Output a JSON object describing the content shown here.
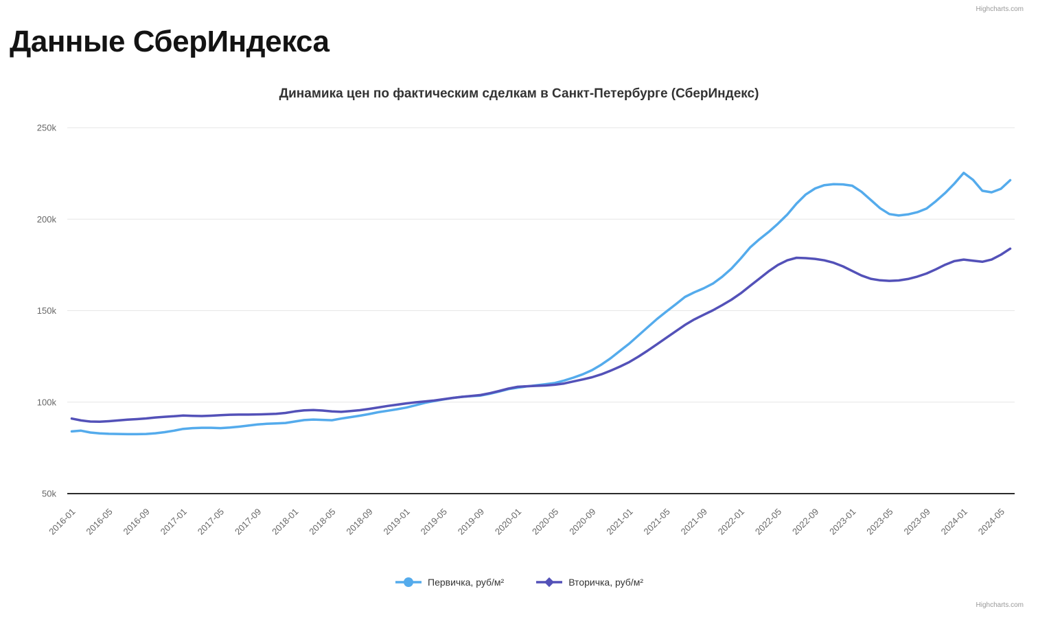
{
  "page": {
    "title": "Данные СберИндекса"
  },
  "credits": {
    "top": "Highcharts.com",
    "bottom": "Highcharts.com"
  },
  "chart_data": {
    "type": "line",
    "title": "Динамика цен по фактическим сделкам в Санкт-Петербурге (СберИндекс)",
    "xlabel": "",
    "ylabel": "",
    "unit": "руб/м²",
    "values_format": "thousands (axis shows k)",
    "ylim": [
      50,
      250
    ],
    "grid": "horizontal",
    "grid_color": "#E6E6E6",
    "axis_line_color": "#2B2B2B",
    "label_color": "#666666",
    "legend_position": "bottom",
    "y_ticks": [
      {
        "value": 50,
        "label": "50k"
      },
      {
        "value": 100,
        "label": "100k"
      },
      {
        "value": 150,
        "label": "150k"
      },
      {
        "value": 200,
        "label": "200k"
      },
      {
        "value": 250,
        "label": "250k"
      }
    ],
    "x_tick_every": 4,
    "x_tick_labels": [
      "2016-01",
      "2016-05",
      "2016-09",
      "2017-01",
      "2017-05",
      "2017-09",
      "2018-01",
      "2018-05",
      "2018-09",
      "2019-01",
      "2019-05",
      "2019-09",
      "2020-01",
      "2020-05",
      "2020-09",
      "2021-01",
      "2021-05",
      "2021-09",
      "2022-01",
      "2022-05",
      "2022-09",
      "2023-01",
      "2023-05",
      "2023-09",
      "2024-01",
      "2024-05"
    ],
    "x": [
      "2016-01",
      "2016-02",
      "2016-03",
      "2016-04",
      "2016-05",
      "2016-06",
      "2016-07",
      "2016-08",
      "2016-09",
      "2016-10",
      "2016-11",
      "2016-12",
      "2017-01",
      "2017-02",
      "2017-03",
      "2017-04",
      "2017-05",
      "2017-06",
      "2017-07",
      "2017-08",
      "2017-09",
      "2017-10",
      "2017-11",
      "2017-12",
      "2018-01",
      "2018-02",
      "2018-03",
      "2018-04",
      "2018-05",
      "2018-06",
      "2018-07",
      "2018-08",
      "2018-09",
      "2018-10",
      "2018-11",
      "2018-12",
      "2019-01",
      "2019-02",
      "2019-03",
      "2019-04",
      "2019-05",
      "2019-06",
      "2019-07",
      "2019-08",
      "2019-09",
      "2019-10",
      "2019-11",
      "2019-12",
      "2020-01",
      "2020-02",
      "2020-03",
      "2020-04",
      "2020-05",
      "2020-06",
      "2020-07",
      "2020-08",
      "2020-09",
      "2020-10",
      "2020-11",
      "2020-12",
      "2021-01",
      "2021-02",
      "2021-03",
      "2021-04",
      "2021-05",
      "2021-06",
      "2021-07",
      "2021-08",
      "2021-09",
      "2021-10",
      "2021-11",
      "2021-12",
      "2022-01",
      "2022-02",
      "2022-03",
      "2022-04",
      "2022-05",
      "2022-06",
      "2022-07",
      "2022-08",
      "2022-09",
      "2022-10",
      "2022-11",
      "2022-12",
      "2023-01",
      "2023-02",
      "2023-03",
      "2023-04",
      "2023-05",
      "2023-06",
      "2023-07",
      "2023-08",
      "2023-09",
      "2023-10",
      "2023-11",
      "2023-12",
      "2024-01",
      "2024-02",
      "2024-03",
      "2024-04",
      "2024-05",
      "2024-06"
    ],
    "series": [
      {
        "name": "Первичка, руб/м²",
        "color": "#54ABEC",
        "marker": "circle",
        "values": [
          84.0,
          84.4,
          83.4,
          82.9,
          82.7,
          82.6,
          82.5,
          82.5,
          82.6,
          83.0,
          83.6,
          84.4,
          85.4,
          85.8,
          86.0,
          86.0,
          85.8,
          86.1,
          86.6,
          87.2,
          87.8,
          88.2,
          88.4,
          88.6,
          89.4,
          90.2,
          90.5,
          90.3,
          90.1,
          91.0,
          91.8,
          92.6,
          93.5,
          94.5,
          95.3,
          96.1,
          97.0,
          98.3,
          99.6,
          100.6,
          101.5,
          102.3,
          102.9,
          103.3,
          103.6,
          104.6,
          105.8,
          107.1,
          107.9,
          108.6,
          109.2,
          109.8,
          110.5,
          111.8,
          113.4,
          115.2,
          117.5,
          120.5,
          124.0,
          128.0,
          132.0,
          136.5,
          141.0,
          145.5,
          149.5,
          153.5,
          157.5,
          160.0,
          162.2,
          164.8,
          168.5,
          173.0,
          178.5,
          184.5,
          189.0,
          193.0,
          197.5,
          202.5,
          208.5,
          213.5,
          216.8,
          218.6,
          219.1,
          219.0,
          218.3,
          215.0,
          210.5,
          206.0,
          202.8,
          202.0,
          202.6,
          203.8,
          205.8,
          209.8,
          214.3,
          219.5,
          225.3,
          221.5,
          215.5,
          214.7,
          216.6,
          221.3
        ]
      },
      {
        "name": "Вторичка, руб/м²",
        "color": "#5351B8",
        "marker": "diamond",
        "values": [
          91.0,
          90.0,
          89.4,
          89.3,
          89.6,
          90.0,
          90.4,
          90.7,
          91.1,
          91.6,
          92.0,
          92.3,
          92.7,
          92.5,
          92.4,
          92.6,
          92.9,
          93.1,
          93.2,
          93.2,
          93.3,
          93.4,
          93.6,
          94.1,
          94.9,
          95.5,
          95.7,
          95.4,
          94.9,
          94.7,
          95.1,
          95.6,
          96.3,
          97.1,
          97.9,
          98.6,
          99.3,
          99.9,
          100.4,
          100.9,
          101.6,
          102.3,
          102.9,
          103.4,
          103.9,
          104.9,
          106.1,
          107.4,
          108.4,
          108.7,
          108.9,
          109.1,
          109.5,
          110.2,
          111.3,
          112.4,
          113.6,
          115.2,
          117.2,
          119.4,
          121.9,
          124.9,
          128.2,
          131.7,
          135.2,
          138.7,
          142.2,
          145.2,
          147.7,
          150.2,
          153.0,
          156.0,
          159.5,
          163.5,
          167.5,
          171.5,
          175.0,
          177.5,
          178.9,
          178.7,
          178.3,
          177.5,
          176.2,
          174.2,
          171.7,
          169.2,
          167.4,
          166.6,
          166.3,
          166.5,
          167.3,
          168.6,
          170.3,
          172.6,
          175.1,
          177.1,
          177.9,
          177.3,
          176.7,
          177.9,
          180.6,
          183.9
        ]
      }
    ]
  }
}
